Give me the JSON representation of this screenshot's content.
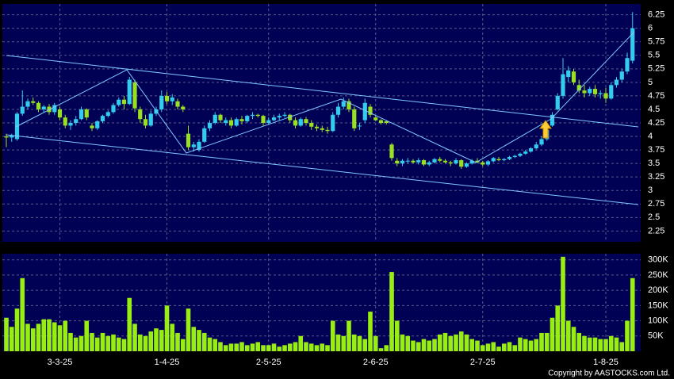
{
  "chart_data": [
    {
      "type": "candlestick",
      "categories": [
        null,
        null,
        null,
        null,
        null,
        null,
        null,
        null,
        null,
        null,
        "3-3-25",
        null,
        null,
        null,
        null,
        null,
        null,
        null,
        null,
        null,
        null,
        null,
        null,
        null,
        null,
        null,
        null,
        null,
        null,
        null,
        "1-4-25",
        null,
        null,
        null,
        null,
        null,
        null,
        null,
        null,
        null,
        null,
        null,
        null,
        null,
        null,
        null,
        null,
        null,
        null,
        "2-5-25",
        null,
        null,
        null,
        null,
        null,
        null,
        null,
        null,
        null,
        null,
        null,
        null,
        null,
        null,
        null,
        null,
        null,
        null,
        null,
        "2-6-25",
        null,
        null,
        null,
        null,
        null,
        null,
        null,
        null,
        null,
        null,
        null,
        null,
        null,
        null,
        null,
        null,
        null,
        null,
        null,
        "2-7-25",
        null,
        null,
        null,
        null,
        null,
        null,
        null,
        null,
        null,
        null,
        null,
        null,
        null,
        null,
        null,
        null,
        null,
        null,
        null,
        null,
        null,
        null,
        "1-8-25",
        null,
        null,
        null,
        null,
        null
      ],
      "ohlc": [
        [
          4.0,
          4.05,
          3.8,
          3.98
        ],
        [
          3.98,
          4.05,
          3.9,
          4.02
        ],
        [
          3.95,
          4.45,
          3.92,
          4.42
        ],
        [
          4.42,
          4.85,
          4.38,
          4.55
        ],
        [
          4.55,
          4.7,
          4.5,
          4.65
        ],
        [
          4.65,
          4.72,
          4.58,
          4.62
        ],
        [
          4.62,
          4.65,
          4.45,
          4.5
        ],
        [
          4.5,
          4.58,
          4.45,
          4.55
        ],
        [
          4.55,
          4.6,
          4.4,
          4.45
        ],
        [
          4.45,
          4.62,
          4.4,
          4.58
        ],
        [
          4.5,
          4.55,
          4.3,
          4.35
        ],
        [
          4.35,
          4.4,
          4.15,
          4.2
        ],
        [
          4.2,
          4.3,
          4.12,
          4.25
        ],
        [
          4.25,
          4.38,
          4.2,
          4.32
        ],
        [
          4.32,
          4.55,
          4.3,
          4.5
        ],
        [
          4.5,
          4.52,
          4.3,
          4.35
        ],
        [
          4.2,
          4.25,
          4.1,
          4.15
        ],
        [
          4.15,
          4.3,
          4.12,
          4.28
        ],
        [
          4.28,
          4.4,
          4.25,
          4.38
        ],
        [
          4.38,
          4.48,
          4.35,
          4.45
        ],
        [
          4.45,
          4.62,
          4.42,
          4.58
        ],
        [
          4.58,
          4.72,
          4.55,
          4.68
        ],
        [
          4.68,
          4.75,
          4.5,
          4.6
        ],
        [
          4.6,
          5.1,
          4.58,
          5.05
        ],
        [
          5.0,
          5.05,
          4.45,
          4.52
        ],
        [
          4.5,
          4.55,
          4.25,
          4.32
        ],
        [
          4.32,
          4.4,
          4.15,
          4.2
        ],
        [
          4.2,
          4.48,
          4.18,
          4.42
        ],
        [
          4.42,
          4.55,
          4.38,
          4.5
        ],
        [
          4.5,
          4.85,
          4.45,
          4.75
        ],
        [
          4.75,
          4.82,
          4.6,
          4.65
        ],
        [
          4.65,
          4.78,
          4.58,
          4.72
        ],
        [
          4.65,
          4.7,
          4.5,
          4.55
        ],
        [
          4.55,
          4.58,
          4.45,
          4.5
        ],
        [
          4.05,
          4.2,
          3.75,
          3.8
        ],
        [
          3.8,
          3.9,
          3.72,
          3.85
        ],
        [
          3.75,
          3.95,
          3.72,
          3.9
        ],
        [
          3.9,
          4.2,
          3.88,
          4.15
        ],
        [
          4.15,
          4.3,
          4.1,
          4.25
        ],
        [
          4.25,
          4.45,
          4.22,
          4.4
        ],
        [
          4.4,
          4.42,
          4.25,
          4.3
        ],
        [
          4.25,
          4.35,
          4.2,
          4.3
        ],
        [
          4.3,
          4.35,
          4.15,
          4.2
        ],
        [
          4.2,
          4.35,
          4.18,
          4.32
        ],
        [
          4.32,
          4.38,
          4.22,
          4.28
        ],
        [
          4.28,
          4.4,
          4.25,
          4.38
        ],
        [
          4.38,
          4.45,
          4.32,
          4.4
        ],
        [
          4.4,
          4.42,
          4.35,
          4.38
        ],
        [
          4.38,
          4.4,
          4.2,
          4.25
        ],
        [
          4.25,
          4.35,
          4.22,
          4.3
        ],
        [
          4.3,
          4.4,
          4.28,
          4.35
        ],
        [
          4.35,
          4.42,
          4.3,
          4.38
        ],
        [
          4.38,
          4.45,
          4.35,
          4.4
        ],
        [
          4.4,
          4.42,
          4.25,
          4.3
        ],
        [
          4.3,
          4.35,
          4.15,
          4.2
        ],
        [
          4.2,
          4.35,
          4.18,
          4.32
        ],
        [
          4.32,
          4.36,
          4.2,
          4.25
        ],
        [
          4.25,
          4.3,
          4.12,
          4.18
        ],
        [
          4.18,
          4.22,
          4.1,
          4.15
        ],
        [
          4.15,
          4.2,
          4.08,
          4.12
        ],
        [
          4.12,
          4.18,
          4.05,
          4.1
        ],
        [
          4.1,
          4.45,
          4.08,
          4.4
        ],
        [
          4.4,
          4.62,
          4.35,
          4.55
        ],
        [
          4.55,
          4.72,
          4.5,
          4.65
        ],
        [
          4.65,
          4.7,
          4.45,
          4.5
        ],
        [
          4.5,
          4.55,
          4.1,
          4.15
        ],
        [
          4.2,
          4.25,
          4.12,
          4.2
        ],
        [
          4.3,
          4.7,
          4.25,
          4.62
        ],
        [
          4.55,
          4.6,
          4.35,
          4.4
        ],
        [
          4.35,
          4.38,
          4.28,
          4.3
        ],
        [
          4.3,
          4.32,
          4.22,
          4.25
        ],
        [
          4.28,
          4.3,
          4.22,
          4.25
        ],
        [
          3.85,
          3.88,
          3.55,
          3.6
        ],
        [
          3.55,
          3.6,
          3.45,
          3.5
        ],
        [
          3.5,
          3.58,
          3.45,
          3.55
        ],
        [
          3.55,
          3.6,
          3.5,
          3.55
        ],
        [
          3.55,
          3.58,
          3.5,
          3.52
        ],
        [
          3.52,
          3.6,
          3.48,
          3.56
        ],
        [
          3.56,
          3.58,
          3.45,
          3.48
        ],
        [
          3.48,
          3.55,
          3.45,
          3.52
        ],
        [
          3.52,
          3.6,
          3.5,
          3.58
        ],
        [
          3.58,
          3.62,
          3.52,
          3.55
        ],
        [
          3.55,
          3.58,
          3.5,
          3.52
        ],
        [
          3.52,
          3.55,
          3.45,
          3.5
        ],
        [
          3.5,
          3.6,
          3.48,
          3.56
        ],
        [
          3.56,
          3.58,
          3.4,
          3.44
        ],
        [
          3.44,
          3.52,
          3.42,
          3.5
        ],
        [
          3.5,
          3.58,
          3.48,
          3.55
        ],
        [
          3.55,
          3.6,
          3.5,
          3.52
        ],
        [
          3.52,
          3.55,
          3.45,
          3.48
        ],
        [
          3.48,
          3.56,
          3.45,
          3.54
        ],
        [
          3.54,
          3.62,
          3.52,
          3.6
        ],
        [
          3.58,
          3.62,
          3.54,
          3.56
        ],
        [
          3.56,
          3.6,
          3.54,
          3.58
        ],
        [
          3.58,
          3.64,
          3.56,
          3.62
        ],
        [
          3.62,
          3.66,
          3.6,
          3.64
        ],
        [
          3.64,
          3.7,
          3.62,
          3.68
        ],
        [
          3.68,
          3.75,
          3.66,
          3.72
        ],
        [
          3.72,
          3.8,
          3.7,
          3.78
        ],
        [
          3.78,
          3.9,
          3.76,
          3.85
        ],
        [
          3.85,
          4.0,
          3.82,
          3.95
        ],
        [
          3.95,
          4.15,
          3.92,
          4.12
        ],
        [
          4.2,
          4.45,
          4.18,
          4.4
        ],
        [
          4.5,
          4.8,
          4.48,
          4.75
        ],
        [
          4.75,
          5.45,
          4.7,
          5.15
        ],
        [
          5.1,
          5.3,
          5.0,
          5.22
        ],
        [
          5.2,
          5.25,
          4.95,
          5.0
        ],
        [
          4.95,
          5.05,
          4.8,
          4.85
        ],
        [
          4.85,
          4.95,
          4.72,
          4.8
        ],
        [
          4.8,
          4.92,
          4.75,
          4.88
        ],
        [
          4.88,
          4.95,
          4.72,
          4.78
        ],
        [
          4.78,
          4.85,
          4.7,
          4.8
        ],
        [
          4.8,
          4.9,
          4.62,
          4.7
        ],
        [
          4.7,
          5.0,
          4.68,
          4.95
        ],
        [
          4.95,
          5.1,
          4.9,
          5.05
        ],
        [
          5.05,
          5.25,
          5.0,
          5.2
        ],
        [
          5.2,
          5.55,
          5.15,
          5.45
        ],
        [
          5.4,
          6.3,
          5.35,
          6.0
        ]
      ],
      "up_color": "#33ccee",
      "down_color": "#99e022",
      "ylim": [
        2.05,
        6.45
      ],
      "yticks": [
        2.25,
        2.5,
        2.75,
        3,
        3.25,
        3.5,
        3.75,
        4,
        4.25,
        4.5,
        4.75,
        5,
        5.25,
        5.5,
        5.75,
        6,
        6.25
      ],
      "grid": true
    },
    {
      "type": "bar",
      "values": [
        110000,
        80000,
        140000,
        240000,
        90000,
        75000,
        90000,
        105000,
        105000,
        95000,
        85000,
        100000,
        60000,
        45000,
        50000,
        100000,
        60000,
        45000,
        60000,
        50000,
        55000,
        45000,
        40000,
        175000,
        90000,
        55000,
        50000,
        65000,
        75000,
        70000,
        150000,
        90000,
        60000,
        40000,
        140000,
        80000,
        70000,
        60000,
        45000,
        40000,
        30000,
        20000,
        25000,
        25000,
        30000,
        20000,
        25000,
        30000,
        20000,
        20000,
        25000,
        15000,
        20000,
        25000,
        30000,
        50000,
        30000,
        25000,
        20000,
        25000,
        20000,
        100000,
        55000,
        50000,
        100000,
        55000,
        50000,
        40000,
        130000,
        50000,
        10000,
        20000,
        260000,
        100000,
        55000,
        50000,
        35000,
        30000,
        40000,
        35000,
        40000,
        55000,
        60000,
        50000,
        55000,
        65000,
        55000,
        40000,
        35000,
        20000,
        25000,
        30000,
        15000,
        25000,
        30000,
        20000,
        45000,
        40000,
        35000,
        40000,
        60000,
        60000,
        110000,
        150000,
        310000,
        100000,
        80000,
        60000,
        50000,
        45000,
        45000,
        40000,
        40000,
        50000,
        45000,
        30000,
        100000,
        240000
      ],
      "color": "#99ee11",
      "ylim": [
        0,
        320000
      ],
      "yticks": [
        {
          "value": 50000,
          "label": "50K"
        },
        {
          "value": 100000,
          "label": "100K"
        },
        {
          "value": 150000,
          "label": "150K"
        },
        {
          "value": 200000,
          "label": "200K"
        },
        {
          "value": 250000,
          "label": "250K"
        },
        {
          "value": 300000,
          "label": "300K"
        }
      ],
      "grid": true
    }
  ],
  "copyright": "Copyright by AASTOCKS.com Ltd."
}
